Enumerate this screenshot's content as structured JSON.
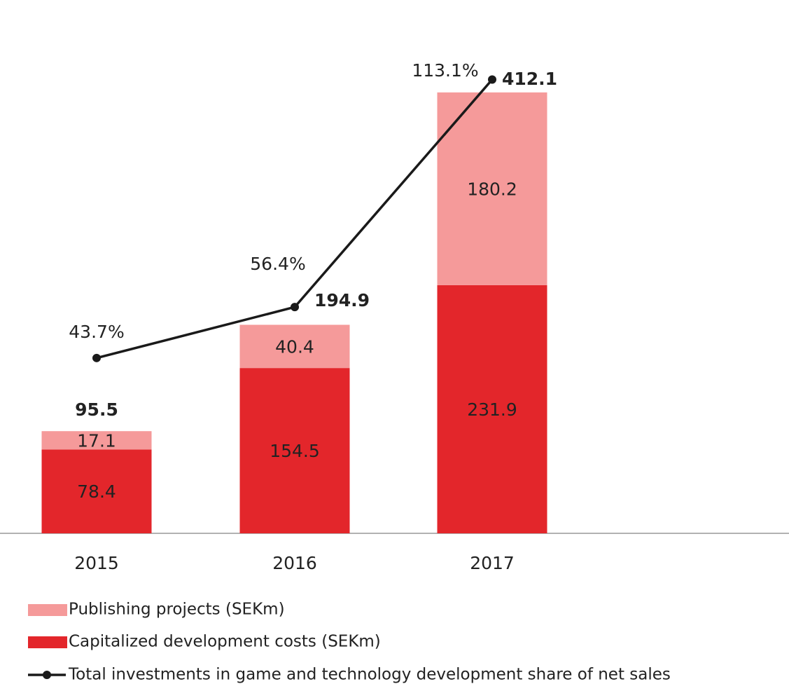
{
  "chart_data": {
    "type": "bar",
    "categories": [
      "2015",
      "2016",
      "2017"
    ],
    "series": [
      {
        "name": "Capitalized development costs (SEKm)",
        "color": "#e3262b",
        "values": [
          78.4,
          154.5,
          231.9
        ]
      },
      {
        "name": "Publishing projects (SEKm)",
        "color": "#f59a9a",
        "values": [
          17.1,
          40.4,
          180.2
        ]
      },
      {
        "name": "Total investments in game and technology development share of net sales",
        "color": "#1a1a1a",
        "type": "line",
        "axis": "y2",
        "values": [
          43.7,
          56.4,
          113.1
        ],
        "value_labels": [
          "43.7%",
          "56.4%",
          "113.1%"
        ]
      }
    ],
    "totals": [
      95.5,
      194.9,
      412.1
    ],
    "ylim": [
      0,
      450
    ],
    "y2lim": [
      0,
      120
    ]
  }
}
